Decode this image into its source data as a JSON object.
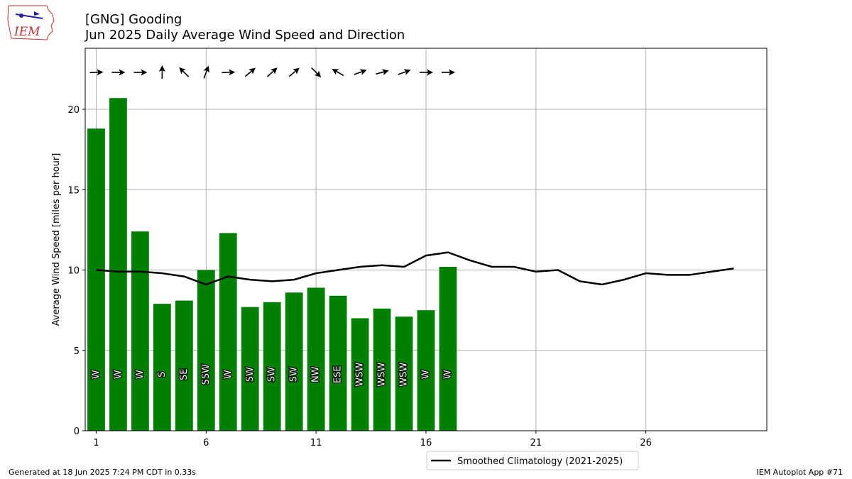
{
  "header": {
    "title_line1": "[GNG] Gooding",
    "title_line2": "Jun 2025 Daily Average Wind Speed and Direction"
  },
  "logo": {
    "text": "IEM"
  },
  "footer": {
    "generated": "Generated at 18 Jun 2025 7:24 PM CDT in 0.33s",
    "app": "IEM Autoplot App #71"
  },
  "colors": {
    "bar": "#008000",
    "climo": "#000000",
    "grid": "#b0b0b0"
  },
  "chart_data": {
    "type": "bar",
    "ylabel": "Average Wind Speed [miles per hour]",
    "xlabel": "",
    "xlim": [
      0.5,
      31.5
    ],
    "ylim": [
      0,
      23.8
    ],
    "xticks": [
      1,
      6,
      11,
      16,
      21,
      26
    ],
    "yticks": [
      0,
      5,
      10,
      15,
      20
    ],
    "grid": true,
    "legend_position": "bottom-center",
    "days": [
      1,
      2,
      3,
      4,
      5,
      6,
      7,
      8,
      9,
      10,
      11,
      12,
      13,
      14,
      15,
      16,
      17
    ],
    "values": [
      18.8,
      20.7,
      12.4,
      7.9,
      8.1,
      10.0,
      12.3,
      7.7,
      8.0,
      8.6,
      8.9,
      8.4,
      7.0,
      7.6,
      7.1,
      7.5,
      10.2
    ],
    "directions": [
      "W",
      "W",
      "W",
      "S",
      "SE",
      "SSW",
      "W",
      "SW",
      "SW",
      "SW",
      "NW",
      "ESE",
      "WSW",
      "WSW",
      "WSW",
      "W",
      "W"
    ],
    "direction_degrees": [
      268,
      270,
      270,
      180,
      135,
      200,
      268,
      230,
      228,
      230,
      315,
      120,
      250,
      255,
      250,
      270,
      270
    ],
    "series": [
      {
        "name": "Smoothed Climatology (2021-2025)",
        "x": [
          1,
          2,
          3,
          4,
          5,
          6,
          7,
          8,
          9,
          10,
          11,
          12,
          13,
          14,
          15,
          16,
          17,
          18,
          19,
          20,
          21,
          22,
          23,
          24,
          25,
          26,
          27,
          28,
          29,
          30
        ],
        "values": [
          10.0,
          9.9,
          9.9,
          9.8,
          9.6,
          9.1,
          9.6,
          9.4,
          9.3,
          9.4,
          9.8,
          10.0,
          10.2,
          10.3,
          10.2,
          10.9,
          11.1,
          10.6,
          10.2,
          10.2,
          9.9,
          10.0,
          9.3,
          9.1,
          9.4,
          9.8,
          9.7,
          9.7,
          9.9,
          10.1
        ]
      }
    ]
  }
}
